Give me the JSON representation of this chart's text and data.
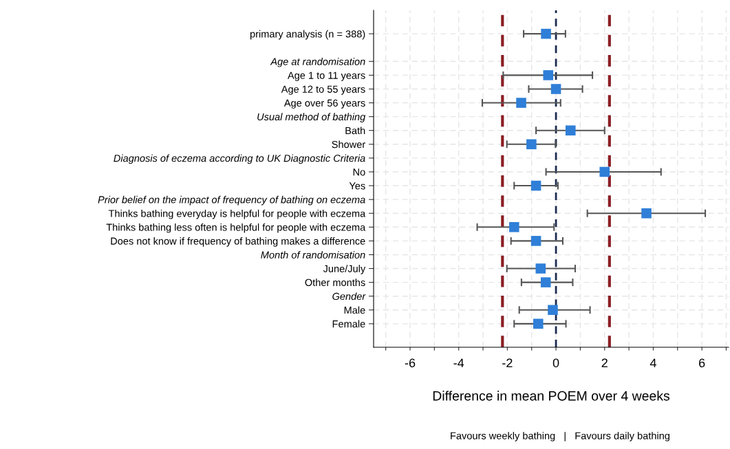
{
  "chart_data": {
    "type": "scatter",
    "orientation": "horizontal",
    "categories": [
      "primary analysis (n = 388)",
      null,
      "Age at randomisation",
      "Age 1 to 11 years",
      "Age 12 to 55 years",
      "Age over 56 years",
      "Usual method of bathing",
      "Bath",
      "Shower",
      "Diagnosis of eczema according to UK Diagnostic Criteria",
      "No",
      "Yes",
      "Prior belief on the impact of frequency of bathing on eczema",
      "Thinks bathing everyday is helpful for people with eczema",
      "Thinks bathing less often is helpful for people with eczema",
      "Does not know if frequency of bathing makes a difference",
      "Month of randomisation",
      "June/July",
      "Other months",
      "Gender",
      "Male",
      "Female"
    ],
    "series": [
      {
        "color": "#2f7fd8",
        "values": [
          -0.41,
          null,
          null,
          -0.32,
          0.0,
          -1.43,
          null,
          0.6,
          -1.01,
          null,
          2.0,
          -0.82,
          null,
          3.72,
          -1.72,
          -0.82,
          null,
          -0.63,
          -0.42,
          null,
          -0.13,
          -0.73
        ],
        "errors": [
          [
            -1.33,
            0.39
          ],
          null,
          null,
          [
            -2.17,
            1.5
          ],
          [
            -1.12,
            1.09
          ],
          [
            -3.03,
            0.19
          ],
          null,
          [
            -0.82,
            2.0
          ],
          [
            -2.02,
            -0.02
          ],
          null,
          [
            -0.41,
            4.32
          ],
          [
            -1.72,
            0.08
          ],
          null,
          [
            1.29,
            6.14
          ],
          [
            -3.24,
            -0.08
          ],
          [
            -1.85,
            0.28
          ],
          null,
          [
            -2.02,
            0.79
          ],
          [
            -1.42,
            0.69
          ],
          null,
          [
            -1.51,
            1.4
          ],
          [
            -1.72,
            0.41
          ]
        ]
      }
    ],
    "marker": "square",
    "xlim": [
      -7.5,
      7.1
    ],
    "xticks": [
      {
        "value": -7,
        "label": null
      },
      -6,
      {
        "value": -5,
        "label": null
      },
      -4,
      {
        "value": -3,
        "label": null
      },
      -2,
      {
        "value": -1,
        "label": null
      },
      0,
      {
        "value": 1,
        "label": null
      },
      2,
      {
        "value": 3,
        "label": null
      },
      4,
      {
        "value": 5,
        "label": null
      },
      6,
      {
        "value": 7,
        "label": null
      }
    ],
    "grid": true,
    "xlabel": "Difference in mean POEM over 4 weeks",
    "ref_lines": [
      {
        "axis": "x",
        "value": -2.2,
        "color": "#8b1e24",
        "line_style": "dashed"
      },
      {
        "axis": "x",
        "value": 0,
        "color": "#1b2a4e",
        "line_style": "dashed"
      },
      {
        "axis": "x",
        "value": 2.2,
        "color": "#8b1e24",
        "line_style": "dashed"
      }
    ],
    "annotations": [
      "Favours weekly bathing   |   Favours daily bathing"
    ]
  }
}
